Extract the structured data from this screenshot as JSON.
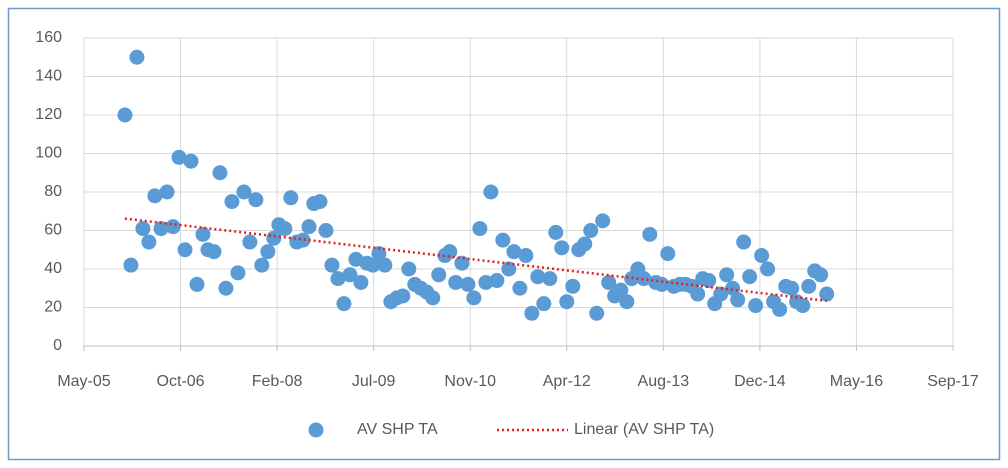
{
  "chart_data": {
    "type": "scatter",
    "series": [
      {
        "name": "AV SHP TA",
        "color": "#5b9bd5",
        "x": [
          38712,
          38743,
          38774,
          38805,
          38836,
          38867,
          38899,
          38930,
          38961,
          38992,
          39023,
          39054,
          39085,
          39116,
          39142,
          39173,
          39204,
          39235,
          39266,
          39297,
          39328,
          39359,
          39390,
          39421,
          39452,
          39483,
          39509,
          39540,
          39571,
          39602,
          39634,
          39665,
          39690,
          39722,
          39753,
          39784,
          39815,
          39846,
          39877,
          39908,
          39934,
          39965,
          39996,
          40027,
          40058,
          40089,
          40120,
          40151,
          40182,
          40213,
          40244,
          40275,
          40306,
          40337,
          40369,
          40394,
          40425,
          40457,
          40488,
          40519,
          40550,
          40581,
          40607,
          40638,
          40669,
          40700,
          40726,
          40757,
          40788,
          40819,
          40850,
          40881,
          40912,
          40943,
          40974,
          41000,
          41031,
          41062,
          41093,
          41124,
          41155,
          41186,
          41217,
          41248,
          41280,
          41311,
          41336,
          41368,
          41399,
          41430,
          41461,
          41492,
          41523,
          41554,
          41585,
          41616,
          41647,
          41678,
          41704,
          41735,
          41766,
          41797,
          41828,
          41859,
          41885,
          41916,
          41947,
          41978,
          42009,
          42040,
          42071,
          42102,
          42134,
          42165,
          42190,
          42222,
          42253,
          42284,
          42315,
          42346
        ],
        "values": [
          120,
          42,
          150,
          61,
          54,
          78,
          61,
          80,
          62,
          98,
          50,
          96,
          32,
          58,
          50,
          49,
          90,
          30,
          75,
          38,
          80,
          54,
          76,
          42,
          49,
          56,
          63,
          61,
          77,
          54,
          55,
          62,
          74,
          75,
          60,
          42,
          35,
          22,
          37,
          45,
          33,
          43,
          42,
          48,
          42,
          23,
          25,
          26,
          40,
          32,
          30,
          28,
          25,
          37,
          47,
          49,
          33,
          43,
          32,
          25,
          61,
          33,
          80,
          34,
          55,
          40,
          49,
          30,
          47,
          17,
          36,
          22,
          35,
          59,
          51,
          23,
          31,
          50,
          53,
          60,
          17,
          65,
          33,
          26,
          29,
          23,
          35,
          40,
          35,
          58,
          33,
          32,
          48,
          31,
          32,
          32,
          31,
          27,
          35,
          34,
          22,
          27,
          37,
          30,
          24,
          54,
          36,
          21,
          47,
          40,
          23,
          19,
          31,
          30,
          23,
          21,
          31,
          39,
          37,
          27
        ]
      }
    ],
    "trendline": {
      "name": "Linear (AV SHP TA)",
      "color": "#e02020"
    },
    "xlim": [
      38500,
      43000
    ],
    "xticks": [
      {
        "value": 38500,
        "label": "May-05"
      },
      {
        "value": 39000,
        "label": "Oct-06"
      },
      {
        "value": 39500,
        "label": "Feb-08"
      },
      {
        "value": 40000,
        "label": "Jul-09"
      },
      {
        "value": 40500,
        "label": "Nov-10"
      },
      {
        "value": 41000,
        "label": "Apr-12"
      },
      {
        "value": 41500,
        "label": "Aug-13"
      },
      {
        "value": 42000,
        "label": "Dec-14"
      },
      {
        "value": 42500,
        "label": "May-16"
      },
      {
        "value": 43000,
        "label": "Sep-17"
      }
    ],
    "ylim": [
      0,
      160
    ],
    "yticks": [
      0,
      20,
      40,
      60,
      80,
      100,
      120,
      140,
      160
    ],
    "grid": true
  }
}
